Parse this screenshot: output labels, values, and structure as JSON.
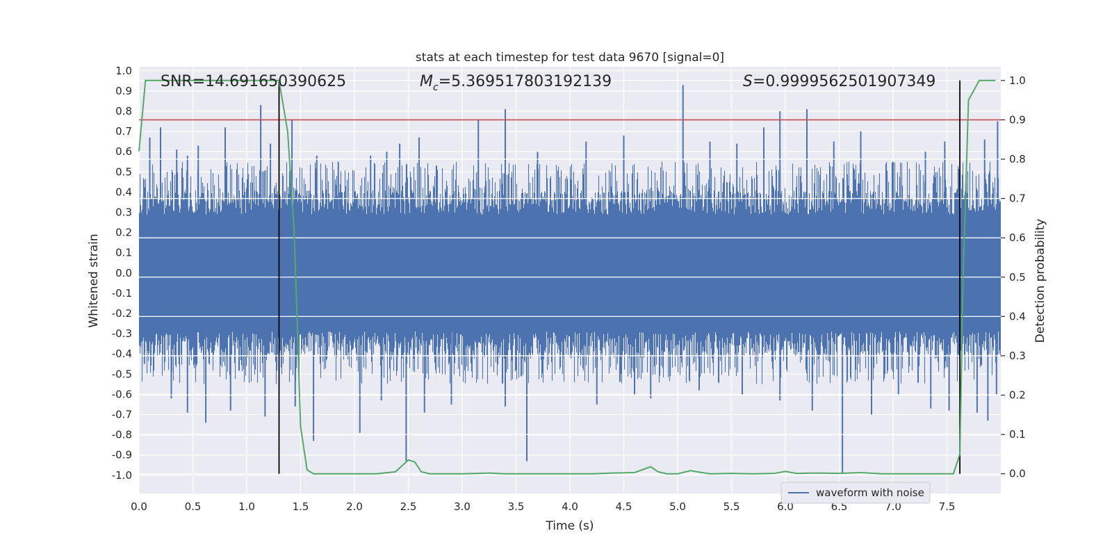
{
  "chart_data": {
    "type": "line",
    "title": "stats at each timestep for test data 9670 [signal=0]",
    "xlabel": "Time (s)",
    "ylabel_left": "Whitened strain",
    "ylabel_right": "Detection probability",
    "xlim": [
      0.0,
      8.0
    ],
    "ylim_left": [
      -1.09,
      1.02
    ],
    "ylim_right": [
      -0.05,
      1.035
    ],
    "x_ticks": [
      "0.0",
      "0.5",
      "1.0",
      "1.5",
      "2.0",
      "2.5",
      "3.0",
      "3.5",
      "4.0",
      "4.5",
      "5.0",
      "5.5",
      "6.0",
      "6.5",
      "7.0",
      "7.5"
    ],
    "x_tick_values": [
      0.0,
      0.5,
      1.0,
      1.5,
      2.0,
      2.5,
      3.0,
      3.5,
      4.0,
      4.5,
      5.0,
      5.5,
      6.0,
      6.5,
      7.0,
      7.5
    ],
    "y_left_ticks": [
      "1.0",
      "0.9",
      "0.8",
      "0.7",
      "0.6",
      "0.5",
      "0.4",
      "0.3",
      "0.2",
      "0.1",
      "0.0",
      "-0.1",
      "-0.2",
      "-0.3",
      "-0.4",
      "-0.5",
      "-0.6",
      "-0.7",
      "-0.8",
      "-0.9",
      "-1.0"
    ],
    "y_left_tick_values": [
      1.0,
      0.9,
      0.8,
      0.7,
      0.6,
      0.5,
      0.4,
      0.3,
      0.2,
      0.1,
      0.0,
      -0.1,
      -0.2,
      -0.3,
      -0.4,
      -0.5,
      -0.6,
      -0.7,
      -0.8,
      -0.9,
      -1.0
    ],
    "y_right_ticks": [
      "1.0",
      "0.9",
      "0.8",
      "0.7",
      "0.6",
      "0.5",
      "0.4",
      "0.3",
      "0.2",
      "0.1",
      "0.0"
    ],
    "y_right_tick_values": [
      1.0,
      0.9,
      0.8,
      0.7,
      0.6,
      0.5,
      0.4,
      0.3,
      0.2,
      0.1,
      0.0
    ],
    "annotations": {
      "snr": "SNR=14.691650390625",
      "mc_symbol": "M",
      "mc_sub": "c",
      "mc_value": "=5.369517803192139",
      "s_symbol": "S",
      "s_value": "=0.9999562501907349"
    },
    "threshold": {
      "value": 0.9,
      "axis": "right",
      "color": "#c44e52"
    },
    "vertical_markers": [
      1.3,
      7.62
    ],
    "waveform": {
      "name": "waveform with noise",
      "color": "#4c72b0",
      "typical_envelope": 0.34,
      "spikes": [
        [
          0.1,
          0.67
        ],
        [
          0.2,
          0.72
        ],
        [
          0.35,
          0.61
        ],
        [
          0.45,
          0.58
        ],
        [
          0.55,
          0.63
        ],
        [
          0.8,
          0.72
        ],
        [
          1.13,
          0.83
        ],
        [
          1.22,
          0.64
        ],
        [
          1.42,
          0.76
        ],
        [
          1.65,
          0.58
        ],
        [
          1.85,
          0.55
        ],
        [
          2.15,
          0.58
        ],
        [
          2.3,
          0.6
        ],
        [
          2.42,
          0.64
        ],
        [
          2.6,
          0.67
        ],
        [
          3.15,
          0.76
        ],
        [
          3.4,
          0.81
        ],
        [
          3.7,
          0.6
        ],
        [
          4.15,
          0.65
        ],
        [
          4.5,
          0.68
        ],
        [
          5.05,
          0.93
        ],
        [
          5.3,
          0.65
        ],
        [
          5.55,
          0.64
        ],
        [
          5.8,
          0.72
        ],
        [
          5.95,
          0.8
        ],
        [
          6.2,
          0.81
        ],
        [
          6.45,
          0.65
        ],
        [
          6.7,
          0.7
        ],
        [
          7.0,
          0.55
        ],
        [
          7.3,
          0.6
        ],
        [
          7.48,
          0.65
        ],
        [
          7.85,
          0.66
        ],
        [
          7.97,
          0.75
        ],
        [
          0.05,
          -0.45
        ],
        [
          0.3,
          -0.62
        ],
        [
          0.45,
          -0.69
        ],
        [
          0.62,
          -0.74
        ],
        [
          0.85,
          -0.68
        ],
        [
          1.17,
          -0.71
        ],
        [
          1.45,
          -0.66
        ],
        [
          1.62,
          -0.83
        ],
        [
          2.05,
          -0.79
        ],
        [
          2.25,
          -0.63
        ],
        [
          2.48,
          -0.93
        ],
        [
          2.65,
          -0.69
        ],
        [
          2.9,
          -0.65
        ],
        [
          3.4,
          -0.66
        ],
        [
          3.6,
          -0.93
        ],
        [
          4.25,
          -0.65
        ],
        [
          4.6,
          -0.6
        ],
        [
          4.75,
          -0.62
        ],
        [
          5.2,
          -0.58
        ],
        [
          5.6,
          -0.6
        ],
        [
          5.95,
          -0.63
        ],
        [
          6.25,
          -0.68
        ],
        [
          6.53,
          -0.99
        ],
        [
          6.8,
          -0.7
        ],
        [
          7.05,
          -0.6
        ],
        [
          7.35,
          -0.67
        ],
        [
          7.52,
          -0.68
        ],
        [
          7.78,
          -0.69
        ],
        [
          7.88,
          -0.73
        ],
        [
          7.96,
          -0.6
        ]
      ]
    },
    "detection_probability": {
      "name": "Detection probability",
      "color": "#55a868",
      "x": [
        0.0,
        0.06,
        0.1,
        0.2,
        0.5,
        1.0,
        1.3,
        1.38,
        1.44,
        1.5,
        1.56,
        1.62,
        1.8,
        2.0,
        2.2,
        2.38,
        2.44,
        2.5,
        2.56,
        2.62,
        2.7,
        2.8,
        3.0,
        3.25,
        3.4,
        3.8,
        4.2,
        4.4,
        4.6,
        4.75,
        4.82,
        4.9,
        5.0,
        5.12,
        5.2,
        5.3,
        5.5,
        5.7,
        5.9,
        6.0,
        6.1,
        6.3,
        6.5,
        6.7,
        6.9,
        7.1,
        7.3,
        7.56,
        7.62,
        7.65,
        7.7,
        7.8,
        7.95
      ],
      "y": [
        0.82,
        1.0,
        1.0,
        1.0,
        1.0,
        1.0,
        1.0,
        0.87,
        0.62,
        0.12,
        0.01,
        0.0,
        0.0,
        0.0,
        0.0,
        0.005,
        0.02,
        0.035,
        0.03,
        0.005,
        0.0,
        0.0,
        0.0,
        0.002,
        0.0,
        0.0,
        0.0,
        0.002,
        0.003,
        0.018,
        0.005,
        0.0,
        0.0,
        0.008,
        0.004,
        0.0,
        0.001,
        0.0,
        0.001,
        0.006,
        0.001,
        0.002,
        0.001,
        0.003,
        0.0,
        0.0,
        0.0,
        0.0,
        0.05,
        0.5,
        0.95,
        1.0,
        1.0
      ]
    },
    "legend": {
      "label": "waveform with noise",
      "placement": "lower-right"
    }
  }
}
